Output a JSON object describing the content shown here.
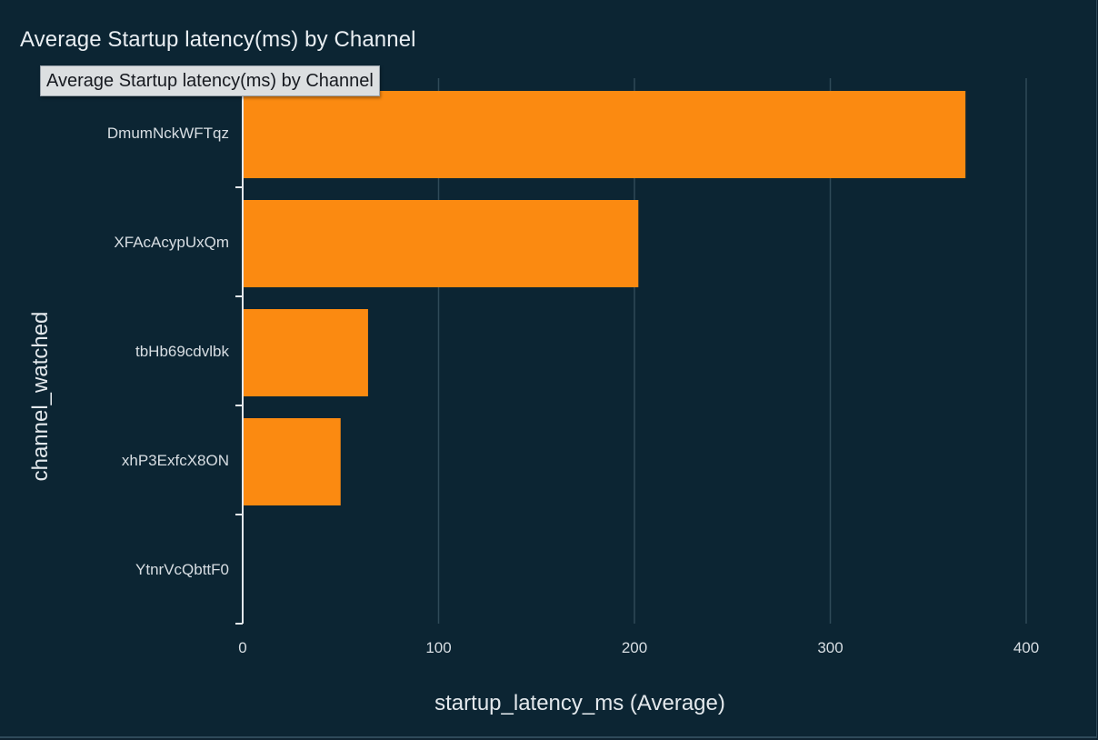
{
  "page": {
    "title": "Average Startup latency(ms) by Channel",
    "tooltip": "Average Startup latency(ms) by Channel"
  },
  "colors": {
    "background": "#0c2533",
    "bar": "#fb8a11",
    "grid": "#2f4a58",
    "axis": "#e3e8ec",
    "text": "#d8dee3"
  },
  "chart_data": {
    "type": "bar",
    "orientation": "horizontal",
    "title": "Average Startup latency(ms) by Channel",
    "xlabel": "startup_latency_ms (Average)",
    "ylabel": "channel_watched",
    "categories": [
      "DmumNckWFTqz",
      "XFAcAcypUxQm",
      "tbHb69cdvlbk",
      "xhP3ExfcX8ON",
      "YtnrVcQbttF0"
    ],
    "values": [
      369,
      202,
      64,
      50,
      0
    ],
    "xlim": [
      0,
      430
    ],
    "xticks": [
      0,
      100,
      200,
      300,
      400
    ],
    "grid": true,
    "legend": "none"
  }
}
